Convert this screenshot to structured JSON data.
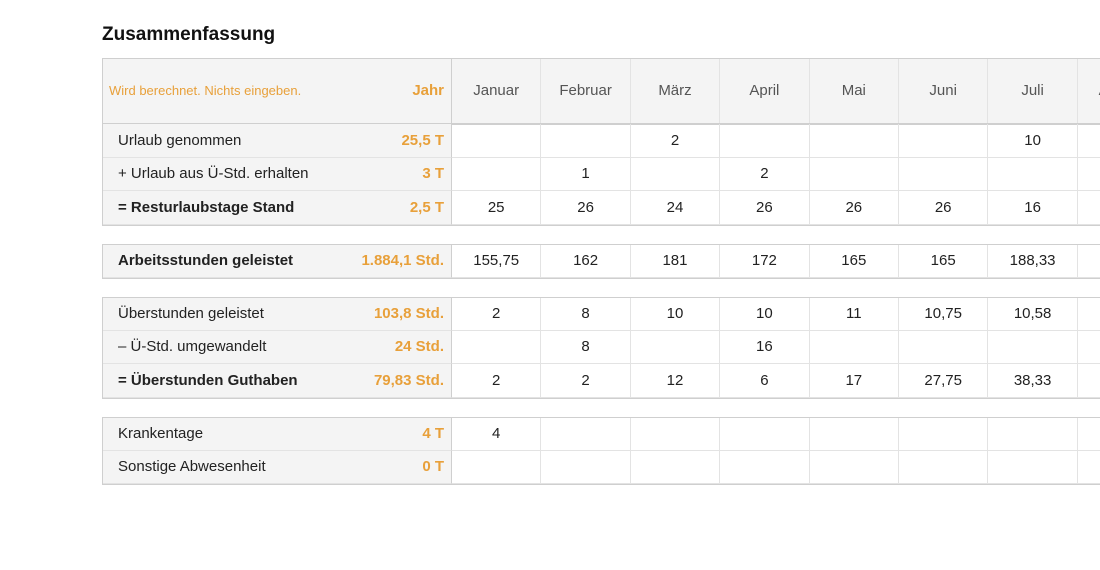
{
  "header": {
    "title": "Zusammenfassung"
  },
  "table": {
    "note": "Wird berechnet. Nichts eingeben.",
    "year_label": "Jahr",
    "months": [
      "Januar",
      "Februar",
      "März",
      "April",
      "Mai",
      "Juni",
      "Juli",
      "August"
    ],
    "groups": [
      {
        "rows": [
          {
            "label": "Urlaub genommen",
            "total": "25,5 T",
            "bold": false,
            "values": [
              null,
              null,
              "2",
              null,
              null,
              null,
              "10",
              null
            ]
          },
          {
            "label": "+ Urlaub aus Ü-Std. erhalten",
            "total": "3 T",
            "bold": false,
            "values": [
              null,
              "1",
              null,
              "2",
              null,
              null,
              null,
              null
            ]
          },
          {
            "label": "= Resturlaubstage Stand",
            "total": "2,5 T",
            "bold": true,
            "values": [
              "25",
              "26",
              "24",
              "26",
              "26",
              "26",
              "16",
              null
            ]
          }
        ]
      },
      {
        "rows": [
          {
            "label": "Arbeitsstunden geleistet",
            "total": "1.884,1 Std.",
            "bold": true,
            "values": [
              "155,75",
              "162",
              "181",
              "172",
              "165",
              "165",
              "188,33",
              null
            ]
          }
        ]
      },
      {
        "rows": [
          {
            "label": "Überstunden geleistet",
            "total": "103,8 Std.",
            "bold": false,
            "values": [
              "2",
              "8",
              "10",
              "10",
              "11",
              "10,75",
              "10,58",
              null
            ]
          },
          {
            "label": "– Ü-Std. umgewandelt",
            "total": "24 Std.",
            "bold": false,
            "values": [
              null,
              "8",
              null,
              "16",
              null,
              null,
              null,
              null
            ]
          },
          {
            "label": "= Überstunden Guthaben",
            "total": "79,83 Std.",
            "bold": true,
            "values": [
              "2",
              "2",
              "12",
              "6",
              "17",
              "27,75",
              "38,33",
              null
            ]
          }
        ]
      },
      {
        "rows": [
          {
            "label": "Krankentage",
            "total": "4 T",
            "bold": false,
            "values": [
              "4",
              null,
              null,
              null,
              null,
              null,
              null,
              null
            ]
          },
          {
            "label": "Sonstige Abwesenheit",
            "total": "0 T",
            "bold": false,
            "values": [
              null,
              null,
              null,
              null,
              null,
              null,
              null,
              null
            ]
          }
        ]
      }
    ]
  }
}
